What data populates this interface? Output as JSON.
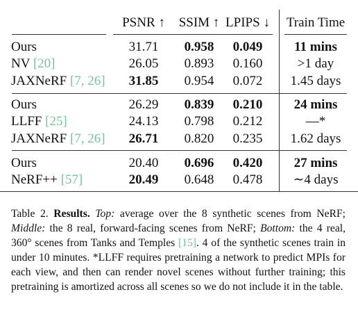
{
  "table": {
    "headers": {
      "psnr": "PSNR ↑",
      "ssim": "SSIM ↑",
      "lpips": "LPIPS ↓",
      "train_time": "Train Time"
    },
    "rows": [
      {
        "method": "Ours",
        "cite": "",
        "psnr": "31.71",
        "ssim": "0.958",
        "lpips": "0.049",
        "time": "11 mins",
        "bold": [
          "ssim",
          "lpips",
          "time"
        ]
      },
      {
        "method": "NV ",
        "cite": "[20]",
        "psnr": "26.05",
        "ssim": "0.893",
        "lpips": "0.160",
        "time": ">1 day",
        "bold": []
      },
      {
        "method": "JAXNeRF ",
        "cite": "[7, 26]",
        "psnr": "31.85",
        "ssim": "0.954",
        "lpips": "0.072",
        "time": "1.45 days",
        "bold": [
          "psnr"
        ]
      },
      {
        "method": "Ours",
        "cite": "",
        "psnr": "26.29",
        "ssim": "0.839",
        "lpips": "0.210",
        "time": "24 mins",
        "bold": [
          "ssim",
          "lpips",
          "time"
        ]
      },
      {
        "method": "LLFF ",
        "cite": "[25]",
        "psnr": "24.13",
        "ssim": "0.798",
        "lpips": "0.212",
        "time": "—*",
        "bold": []
      },
      {
        "method": "JAXNeRF ",
        "cite": "[7, 26]",
        "psnr": "26.71",
        "ssim": "0.820",
        "lpips": "0.235",
        "time": "1.62 days",
        "bold": [
          "psnr"
        ]
      },
      {
        "method": "Ours",
        "cite": "",
        "psnr": "20.40",
        "ssim": "0.696",
        "lpips": "0.420",
        "time": "27 mins",
        "bold": [
          "ssim",
          "lpips",
          "time"
        ]
      },
      {
        "method": "NeRF++ ",
        "cite": "[57]",
        "psnr": "20.49",
        "ssim": "0.648",
        "lpips": "0.478",
        "time": "∼4 days",
        "bold": [
          "psnr"
        ]
      }
    ]
  },
  "caption": {
    "label": "Table 2.",
    "title": "Results.",
    "top_label": "Top:",
    "top_text": " average over the 8 synthetic scenes from NeRF; ",
    "middle_label": "Middle:",
    "middle_text": " the 8 real, forward-facing scenes from NeRF; ",
    "bottom_label": "Bottom:",
    "bottom_text": " the 4 real, 360° scenes from Tanks and Temples ",
    "cite": "[15]",
    "rest": ". 4 of the synthetic scenes train in under 10 minutes. *LLFF requires pretraining a network to predict MPIs for each view, and then can render novel scenes without further training; this pretraining is amortized across all scenes so we do not include it in the table."
  }
}
